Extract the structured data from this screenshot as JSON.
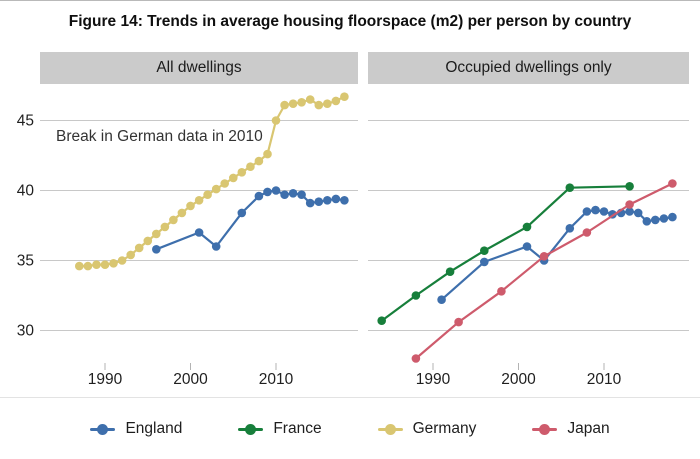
{
  "figure": {
    "title": "Figure 14: Trends in average housing floorspace (m2) per person by country"
  },
  "panels": [
    {
      "header": "All dwellings",
      "annotation": "Break in German data in 2010"
    },
    {
      "header": "Occupied dwellings only"
    }
  ],
  "colors": {
    "header_bg": "#cbcbcb",
    "gridline": "#c8c8c8",
    "tick": "#b3b3b3",
    "tick_text": "#1f1f1f",
    "england": "#3e6fac",
    "france": "#177f3b",
    "germany": "#d9c671",
    "japan": "#ce5b6c"
  },
  "legend": {
    "items": [
      {
        "label": "England",
        "color": "#3e6fac"
      },
      {
        "label": "France",
        "color": "#177f3b"
      },
      {
        "label": "Germany",
        "color": "#d9c671"
      },
      {
        "label": "Japan",
        "color": "#ce5b6c"
      }
    ]
  },
  "chart_data": [
    {
      "type": "line",
      "title": "All dwellings",
      "xlabel": "",
      "ylabel": "",
      "x_ticks": [
        1990,
        2000,
        2010
      ],
      "y_ticks": [
        30,
        35,
        40,
        45
      ],
      "x_range": [
        1982,
        2020
      ],
      "y_range": [
        27.5,
        47.3
      ],
      "grid": true,
      "legend_position": "bottom",
      "annotation": "Break in German data in 2010",
      "series": [
        {
          "name": "Germany",
          "color": "#d9c671",
          "points": [
            [
              1987,
              34.6
            ],
            [
              1988,
              34.6
            ],
            [
              1989,
              34.7
            ],
            [
              1990,
              34.7
            ],
            [
              1991,
              34.8
            ],
            [
              1992,
              35.0
            ],
            [
              1993,
              35.4
            ],
            [
              1994,
              35.9
            ],
            [
              1995,
              36.4
            ],
            [
              1996,
              36.9
            ],
            [
              1997,
              37.4
            ],
            [
              1998,
              37.9
            ],
            [
              1999,
              38.4
            ],
            [
              2000,
              38.9
            ],
            [
              2001,
              39.3
            ],
            [
              2002,
              39.7
            ],
            [
              2003,
              40.1
            ],
            [
              2004,
              40.5
            ],
            [
              2005,
              40.9
            ],
            [
              2006,
              41.3
            ],
            [
              2007,
              41.7
            ],
            [
              2008,
              42.1
            ],
            [
              2009,
              42.6
            ],
            [
              2010,
              45.0
            ],
            [
              2011,
              46.1
            ],
            [
              2012,
              46.2
            ],
            [
              2013,
              46.3
            ],
            [
              2014,
              46.5
            ],
            [
              2015,
              46.1
            ],
            [
              2016,
              46.2
            ],
            [
              2017,
              46.4
            ],
            [
              2018,
              46.7
            ]
          ]
        },
        {
          "name": "England",
          "color": "#3e6fac",
          "points": [
            [
              1996,
              35.8
            ],
            [
              2001,
              37.0
            ],
            [
              2003,
              36.0
            ],
            [
              2006,
              38.4
            ],
            [
              2008,
              39.6
            ],
            [
              2009,
              39.9
            ],
            [
              2010,
              40.0
            ],
            [
              2011,
              39.7
            ],
            [
              2012,
              39.8
            ],
            [
              2013,
              39.7
            ],
            [
              2014,
              39.1
            ],
            [
              2015,
              39.2
            ],
            [
              2016,
              39.3
            ],
            [
              2017,
              39.4
            ],
            [
              2018,
              39.3
            ]
          ]
        }
      ]
    },
    {
      "type": "line",
      "title": "Occupied dwellings only",
      "xlabel": "",
      "ylabel": "",
      "x_ticks": [
        1990,
        2000,
        2010
      ],
      "y_ticks": [
        30,
        35,
        40,
        45
      ],
      "x_range": [
        1982,
        2020
      ],
      "y_range": [
        27.5,
        47.3
      ],
      "grid": true,
      "legend_position": "bottom",
      "series": [
        {
          "name": "France",
          "color": "#177f3b",
          "points": [
            [
              1984,
              30.7
            ],
            [
              1988,
              32.5
            ],
            [
              1992,
              34.2
            ],
            [
              1996,
              35.7
            ],
            [
              2001,
              37.4
            ],
            [
              2006,
              40.2
            ],
            [
              2013,
              40.3
            ]
          ]
        },
        {
          "name": "England",
          "color": "#3e6fac",
          "points": [
            [
              1991,
              32.2
            ],
            [
              1996,
              34.9
            ],
            [
              2001,
              36.0
            ],
            [
              2003,
              35.0
            ],
            [
              2006,
              37.3
            ],
            [
              2008,
              38.5
            ],
            [
              2009,
              38.6
            ],
            [
              2010,
              38.5
            ],
            [
              2011,
              38.3
            ],
            [
              2012,
              38.4
            ],
            [
              2013,
              38.5
            ],
            [
              2014,
              38.4
            ],
            [
              2015,
              37.8
            ],
            [
              2016,
              37.9
            ],
            [
              2017,
              38.0
            ],
            [
              2018,
              38.1
            ]
          ]
        },
        {
          "name": "Japan",
          "color": "#ce5b6c",
          "points": [
            [
              1988,
              28.0
            ],
            [
              1993,
              30.6
            ],
            [
              1998,
              32.8
            ],
            [
              2003,
              35.3
            ],
            [
              2008,
              37.0
            ],
            [
              2013,
              39.0
            ],
            [
              2018,
              40.5
            ]
          ]
        }
      ]
    }
  ]
}
